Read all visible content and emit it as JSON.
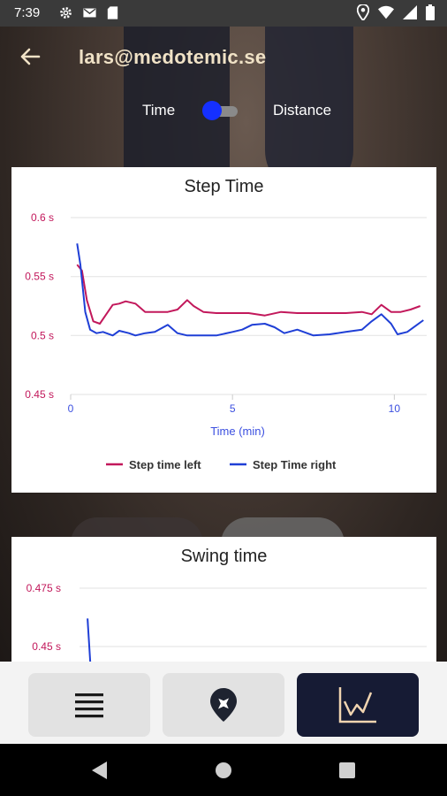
{
  "status_bar": {
    "time": "7:39",
    "left_icons": [
      "gear-icon",
      "mail-icon",
      "sd-card-icon"
    ],
    "right_icons": [
      "location-icon",
      "wifi-icon",
      "signal-icon",
      "battery-icon"
    ]
  },
  "header": {
    "title": "lars@medotemic.se",
    "back_icon": "arrow-left-icon"
  },
  "mode_toggle": {
    "left_label": "Time",
    "right_label": "Distance",
    "state": "Time",
    "accent_color": "#1530ff"
  },
  "charts": [
    {
      "title": "Step Time",
      "xlabel": "Time (min)",
      "y_ticks": [
        "0.6 s",
        "0.55 s",
        "0.5 s",
        "0.45 s"
      ],
      "x_ticks": [
        "0",
        "5",
        "10"
      ],
      "legend": [
        "Step time left",
        "Step Time right"
      ]
    },
    {
      "title": "Swing time",
      "y_ticks": [
        "0.475 s",
        "0.45 s"
      ]
    }
  ],
  "chart_data": [
    {
      "type": "line",
      "title": "Step Time",
      "xlabel": "Time (min)",
      "ylabel": "",
      "xlim": [
        0,
        11
      ],
      "ylim": [
        0.45,
        0.6
      ],
      "grid": true,
      "legend_position": "bottom",
      "series": [
        {
          "name": "Step time left",
          "color": "#c2185b",
          "x": [
            0.2,
            0.35,
            0.5,
            0.7,
            0.9,
            1.1,
            1.3,
            1.5,
            1.7,
            2.0,
            2.3,
            2.6,
            3.0,
            3.3,
            3.6,
            3.8,
            4.1,
            4.5,
            5.0,
            5.5,
            6.0,
            6.5,
            7.0,
            7.5,
            8.0,
            8.5,
            9.0,
            9.3,
            9.6,
            9.9,
            10.2,
            10.5,
            10.8
          ],
          "y": [
            0.56,
            0.555,
            0.53,
            0.512,
            0.51,
            0.518,
            0.526,
            0.527,
            0.529,
            0.527,
            0.52,
            0.52,
            0.52,
            0.522,
            0.53,
            0.525,
            0.52,
            0.519,
            0.519,
            0.519,
            0.517,
            0.52,
            0.519,
            0.519,
            0.519,
            0.519,
            0.52,
            0.518,
            0.526,
            0.52,
            0.52,
            0.522,
            0.525
          ]
        },
        {
          "name": "Step Time right",
          "color": "#1f3fd6",
          "x": [
            0.2,
            0.3,
            0.45,
            0.6,
            0.8,
            1.0,
            1.3,
            1.5,
            1.8,
            2.0,
            2.3,
            2.6,
            3.0,
            3.3,
            3.6,
            4.0,
            4.5,
            5.0,
            5.3,
            5.6,
            6.0,
            6.3,
            6.6,
            7.0,
            7.5,
            8.0,
            8.5,
            9.0,
            9.3,
            9.6,
            9.9,
            10.1,
            10.4,
            10.7,
            10.9
          ],
          "y": [
            0.578,
            0.56,
            0.52,
            0.505,
            0.502,
            0.503,
            0.5,
            0.504,
            0.502,
            0.5,
            0.502,
            0.503,
            0.509,
            0.502,
            0.5,
            0.5,
            0.5,
            0.503,
            0.505,
            0.509,
            0.51,
            0.507,
            0.502,
            0.505,
            0.5,
            0.501,
            0.503,
            0.505,
            0.512,
            0.518,
            0.51,
            0.501,
            0.503,
            0.509,
            0.513
          ]
        }
      ]
    },
    {
      "type": "line",
      "title": "Swing time",
      "ylim": [
        0.45,
        0.475
      ],
      "series": [
        {
          "name": "",
          "color": "#1f3fd6",
          "x": [
            0.2,
            0.3
          ],
          "y": [
            0.462,
            0.44
          ]
        }
      ]
    }
  ],
  "bottom_nav": [
    {
      "icon": "list-icon",
      "active": false
    },
    {
      "icon": "location-pin-icon",
      "active": false
    },
    {
      "icon": "chart-icon",
      "active": true
    }
  ],
  "system_nav": [
    "back-triangle-icon",
    "home-circle-icon",
    "recents-square-icon"
  ]
}
